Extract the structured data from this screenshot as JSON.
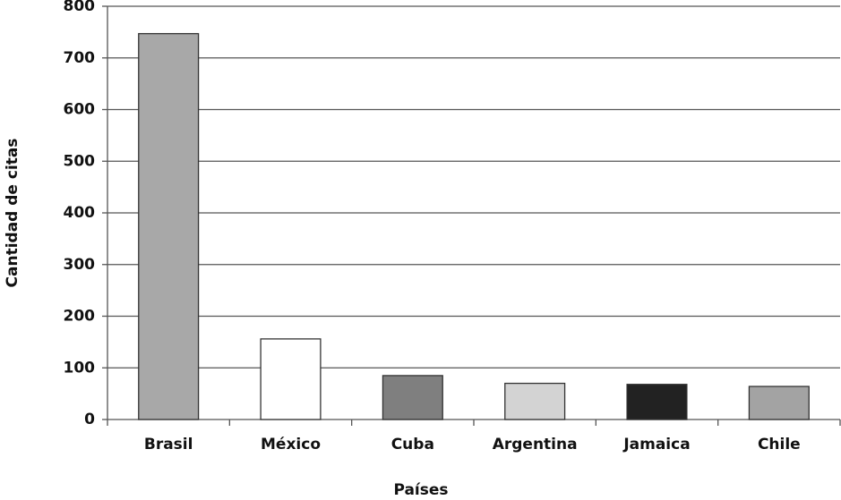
{
  "chart_data": {
    "type": "bar",
    "x_label": "Países",
    "y_label": "Cantidad de citas",
    "categories": [
      "Brasil",
      "México",
      "Cuba",
      "Argentina",
      "Jamaica",
      "Chile"
    ],
    "values": [
      747,
      156,
      85,
      70,
      68,
      64
    ],
    "colors": [
      "#a8a8a8",
      "#ffffff",
      "#7f7f7f",
      "#d3d3d3",
      "#222222",
      "#a3a3a3"
    ],
    "ylim": [
      0,
      800
    ],
    "yticks": [
      0,
      100,
      200,
      300,
      400,
      500,
      600,
      700,
      800
    ],
    "grid": true
  }
}
